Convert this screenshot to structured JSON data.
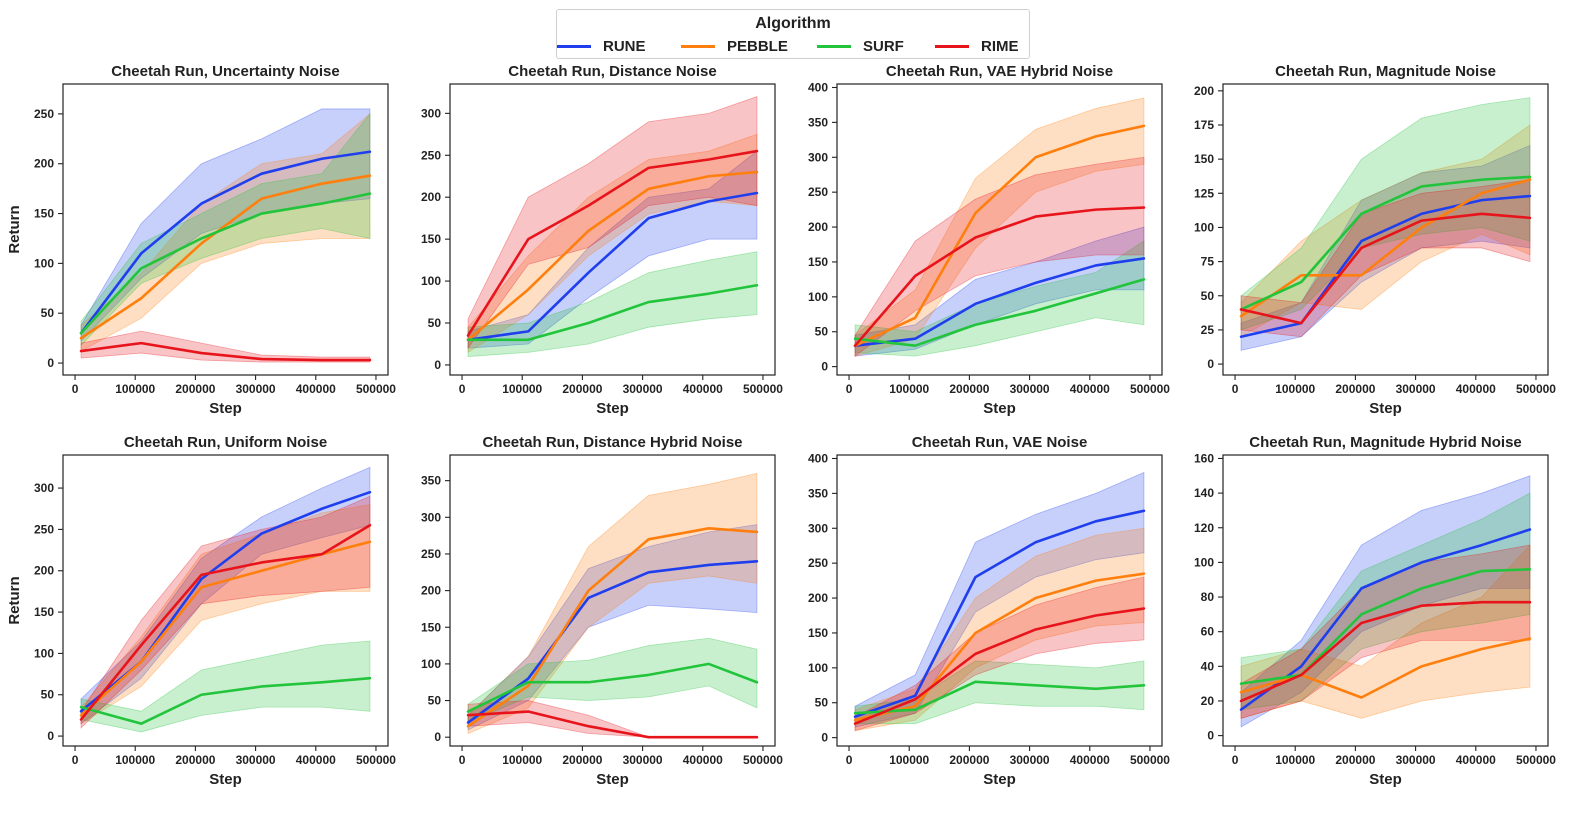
{
  "legend": {
    "title": "Algorithm",
    "items": [
      {
        "name": "RUNE",
        "color": "#1f3fee"
      },
      {
        "name": "PEBBLE",
        "color": "#ff7f0e"
      },
      {
        "name": "SURF",
        "color": "#22c43b"
      },
      {
        "name": "RIME",
        "color": "#e8141c"
      }
    ]
  },
  "chart_data": [
    {
      "type": "line",
      "title": "Cheetah Run, Uncertainty Noise",
      "xlabel": "Step",
      "ylabel": "Return",
      "xlim": [
        -20000,
        520000
      ],
      "ylim": [
        -12,
        280
      ],
      "xticks": [
        0,
        100000,
        200000,
        300000,
        400000,
        500000
      ],
      "yticks": [
        0,
        50,
        100,
        150,
        200,
        250
      ],
      "x": [
        10000,
        110000,
        210000,
        310000,
        410000,
        490000
      ],
      "series": [
        {
          "name": "RUNE",
          "values": [
            30,
            110,
            160,
            190,
            205,
            212
          ],
          "lower": [
            22,
            85,
            130,
            150,
            160,
            165
          ],
          "upper": [
            38,
            140,
            200,
            225,
            255,
            255
          ]
        },
        {
          "name": "PEBBLE",
          "values": [
            25,
            65,
            120,
            165,
            180,
            188
          ],
          "lower": [
            12,
            45,
            100,
            120,
            125,
            125
          ],
          "upper": [
            38,
            90,
            160,
            200,
            210,
            250
          ]
        },
        {
          "name": "SURF",
          "values": [
            30,
            95,
            125,
            150,
            160,
            170
          ],
          "lower": [
            18,
            80,
            105,
            125,
            135,
            125
          ],
          "upper": [
            42,
            120,
            150,
            180,
            190,
            250
          ]
        },
        {
          "name": "RIME",
          "values": [
            12,
            20,
            10,
            4,
            3,
            3
          ],
          "lower": [
            5,
            10,
            3,
            1,
            1,
            1
          ],
          "upper": [
            20,
            32,
            20,
            8,
            6,
            6
          ]
        }
      ]
    },
    {
      "type": "line",
      "title": "Cheetah Run, Distance Noise",
      "xlabel": "Step",
      "ylabel": "",
      "xlim": [
        -20000,
        520000
      ],
      "ylim": [
        -12,
        335
      ],
      "xticks": [
        0,
        100000,
        200000,
        300000,
        400000,
        500000
      ],
      "yticks": [
        0,
        50,
        100,
        150,
        200,
        250,
        300
      ],
      "x": [
        10000,
        110000,
        210000,
        310000,
        410000,
        490000
      ],
      "series": [
        {
          "name": "RUNE",
          "values": [
            30,
            40,
            110,
            175,
            195,
            205
          ],
          "lower": [
            20,
            25,
            80,
            130,
            150,
            150
          ],
          "upper": [
            40,
            60,
            140,
            200,
            210,
            255
          ]
        },
        {
          "name": "PEBBLE",
          "values": [
            30,
            90,
            160,
            210,
            225,
            230
          ],
          "lower": [
            15,
            60,
            130,
            180,
            195,
            190
          ],
          "upper": [
            45,
            130,
            200,
            245,
            255,
            275
          ]
        },
        {
          "name": "SURF",
          "values": [
            30,
            30,
            50,
            75,
            85,
            95
          ],
          "lower": [
            10,
            15,
            25,
            45,
            55,
            60
          ],
          "upper": [
            45,
            50,
            75,
            110,
            125,
            135
          ]
        },
        {
          "name": "RIME",
          "values": [
            35,
            150,
            190,
            235,
            245,
            255
          ],
          "lower": [
            20,
            120,
            140,
            190,
            200,
            190
          ],
          "upper": [
            55,
            200,
            240,
            290,
            300,
            320
          ]
        }
      ]
    },
    {
      "type": "line",
      "title": "Cheetah Run, VAE Hybrid Noise",
      "xlabel": "Step",
      "ylabel": "",
      "xlim": [
        -20000,
        520000
      ],
      "ylim": [
        -12,
        405
      ],
      "xticks": [
        0,
        100000,
        200000,
        300000,
        400000,
        500000
      ],
      "yticks": [
        0,
        50,
        100,
        150,
        200,
        250,
        300,
        350,
        400
      ],
      "x": [
        10000,
        110000,
        210000,
        310000,
        410000,
        490000
      ],
      "series": [
        {
          "name": "RUNE",
          "values": [
            30,
            40,
            90,
            120,
            145,
            155
          ],
          "lower": [
            15,
            25,
            60,
            90,
            110,
            110
          ],
          "upper": [
            45,
            60,
            125,
            150,
            180,
            200
          ]
        },
        {
          "name": "PEBBLE",
          "values": [
            30,
            70,
            220,
            300,
            330,
            345
          ],
          "lower": [
            15,
            40,
            170,
            250,
            280,
            290
          ],
          "upper": [
            45,
            110,
            270,
            340,
            370,
            385
          ]
        },
        {
          "name": "SURF",
          "values": [
            40,
            30,
            60,
            80,
            105,
            125
          ],
          "lower": [
            20,
            15,
            30,
            50,
            70,
            60
          ],
          "upper": [
            60,
            50,
            90,
            115,
            135,
            180
          ]
        },
        {
          "name": "RIME",
          "values": [
            30,
            130,
            185,
            215,
            225,
            228
          ],
          "lower": [
            15,
            80,
            130,
            150,
            160,
            160
          ],
          "upper": [
            45,
            180,
            240,
            275,
            290,
            300
          ]
        }
      ]
    },
    {
      "type": "line",
      "title": "Cheetah Run, Magnitude Noise",
      "xlabel": "Step",
      "ylabel": "",
      "xlim": [
        -20000,
        520000
      ],
      "ylim": [
        -8,
        205
      ],
      "xticks": [
        0,
        100000,
        200000,
        300000,
        400000,
        500000
      ],
      "yticks": [
        0,
        25,
        50,
        75,
        100,
        125,
        150,
        175,
        200
      ],
      "x": [
        10000,
        110000,
        210000,
        310000,
        410000,
        490000
      ],
      "series": [
        {
          "name": "RUNE",
          "values": [
            20,
            30,
            90,
            110,
            120,
            123
          ],
          "lower": [
            10,
            20,
            60,
            85,
            90,
            85
          ],
          "upper": [
            30,
            45,
            120,
            140,
            145,
            160
          ]
        },
        {
          "name": "PEBBLE",
          "values": [
            35,
            65,
            65,
            100,
            125,
            135
          ],
          "lower": [
            20,
            45,
            40,
            75,
            95,
            80
          ],
          "upper": [
            45,
            90,
            120,
            140,
            150,
            175
          ]
        },
        {
          "name": "SURF",
          "values": [
            40,
            60,
            110,
            130,
            135,
            137
          ],
          "lower": [
            25,
            40,
            85,
            95,
            100,
            90
          ],
          "upper": [
            50,
            85,
            150,
            180,
            190,
            195
          ]
        },
        {
          "name": "RIME",
          "values": [
            40,
            30,
            85,
            105,
            110,
            107
          ],
          "lower": [
            25,
            20,
            65,
            85,
            85,
            75
          ],
          "upper": [
            50,
            45,
            110,
            125,
            130,
            135
          ]
        }
      ]
    },
    {
      "type": "line",
      "title": "Cheetah Run, Uniform Noise",
      "xlabel": "Step",
      "ylabel": "Return",
      "xlim": [
        -20000,
        520000
      ],
      "ylim": [
        -12,
        340
      ],
      "xticks": [
        0,
        100000,
        200000,
        300000,
        400000,
        500000
      ],
      "yticks": [
        0,
        50,
        100,
        150,
        200,
        250,
        300
      ],
      "x": [
        10000,
        110000,
        210000,
        310000,
        410000,
        490000
      ],
      "series": [
        {
          "name": "RUNE",
          "values": [
            30,
            90,
            190,
            245,
            275,
            295
          ],
          "lower": [
            15,
            70,
            160,
            220,
            240,
            255
          ],
          "upper": [
            45,
            115,
            215,
            265,
            300,
            325
          ]
        },
        {
          "name": "PEBBLE",
          "values": [
            25,
            90,
            180,
            200,
            220,
            235
          ],
          "lower": [
            15,
            60,
            140,
            160,
            175,
            175
          ],
          "upper": [
            35,
            120,
            220,
            245,
            270,
            280
          ]
        },
        {
          "name": "SURF",
          "values": [
            35,
            15,
            50,
            60,
            65,
            70
          ],
          "lower": [
            20,
            5,
            25,
            35,
            35,
            30
          ],
          "upper": [
            45,
            30,
            80,
            95,
            110,
            115
          ]
        },
        {
          "name": "RIME",
          "values": [
            20,
            110,
            195,
            210,
            220,
            255
          ],
          "lower": [
            10,
            80,
            160,
            170,
            175,
            180
          ],
          "upper": [
            30,
            140,
            230,
            250,
            265,
            290
          ]
        }
      ]
    },
    {
      "type": "line",
      "title": "Cheetah Run, Distance Hybrid Noise",
      "xlabel": "Step",
      "ylabel": "",
      "xlim": [
        -20000,
        520000
      ],
      "ylim": [
        -12,
        385
      ],
      "xticks": [
        0,
        100000,
        200000,
        300000,
        400000,
        500000
      ],
      "yticks": [
        0,
        50,
        100,
        150,
        200,
        250,
        300,
        350
      ],
      "x": [
        10000,
        110000,
        210000,
        310000,
        410000,
        490000
      ],
      "series": [
        {
          "name": "RUNE",
          "values": [
            20,
            80,
            190,
            225,
            235,
            240
          ],
          "lower": [
            10,
            50,
            150,
            180,
            175,
            170
          ],
          "upper": [
            30,
            110,
            230,
            260,
            280,
            290
          ]
        },
        {
          "name": "PEBBLE",
          "values": [
            15,
            70,
            200,
            270,
            285,
            280
          ],
          "lower": [
            5,
            40,
            150,
            210,
            220,
            210
          ],
          "upper": [
            30,
            110,
            260,
            330,
            345,
            360
          ]
        },
        {
          "name": "SURF",
          "values": [
            35,
            75,
            75,
            85,
            100,
            75
          ],
          "lower": [
            20,
            55,
            50,
            55,
            70,
            40
          ],
          "upper": [
            45,
            100,
            105,
            125,
            135,
            120
          ]
        },
        {
          "name": "RIME",
          "values": [
            30,
            35,
            15,
            0,
            0,
            0
          ],
          "lower": [
            15,
            20,
            5,
            0,
            0,
            0
          ],
          "upper": [
            45,
            50,
            30,
            0,
            0,
            0
          ]
        }
      ]
    },
    {
      "type": "line",
      "title": "Cheetah Run, VAE Noise",
      "xlabel": "Step",
      "ylabel": "",
      "xlim": [
        -20000,
        520000
      ],
      "ylim": [
        -12,
        405
      ],
      "xticks": [
        0,
        100000,
        200000,
        300000,
        400000,
        500000
      ],
      "yticks": [
        0,
        50,
        100,
        150,
        200,
        250,
        300,
        350,
        400
      ],
      "x": [
        10000,
        110000,
        210000,
        310000,
        410000,
        490000
      ],
      "series": [
        {
          "name": "RUNE",
          "values": [
            30,
            60,
            230,
            280,
            310,
            325
          ],
          "lower": [
            15,
            35,
            180,
            230,
            255,
            265
          ],
          "upper": [
            45,
            90,
            280,
            320,
            350,
            380
          ]
        },
        {
          "name": "PEBBLE",
          "values": [
            25,
            45,
            150,
            200,
            225,
            235
          ],
          "lower": [
            10,
            25,
            100,
            140,
            160,
            165
          ],
          "upper": [
            40,
            70,
            200,
            260,
            290,
            300
          ]
        },
        {
          "name": "SURF",
          "values": [
            35,
            40,
            80,
            75,
            70,
            75
          ],
          "lower": [
            20,
            20,
            50,
            45,
            45,
            40
          ],
          "upper": [
            45,
            55,
            110,
            105,
            100,
            110
          ]
        },
        {
          "name": "RIME",
          "values": [
            20,
            55,
            120,
            155,
            175,
            185
          ],
          "lower": [
            10,
            35,
            90,
            120,
            135,
            140
          ],
          "upper": [
            30,
            75,
            150,
            190,
            215,
            230
          ]
        }
      ]
    },
    {
      "type": "line",
      "title": "Cheetah Run, Magnitude Hybrid Noise",
      "xlabel": "Step",
      "ylabel": "",
      "xlim": [
        -20000,
        520000
      ],
      "ylim": [
        -6,
        162
      ],
      "xticks": [
        0,
        100000,
        200000,
        300000,
        400000,
        500000
      ],
      "yticks": [
        0,
        20,
        40,
        60,
        80,
        100,
        120,
        140,
        160
      ],
      "x": [
        10000,
        110000,
        210000,
        310000,
        410000,
        490000
      ],
      "series": [
        {
          "name": "RUNE",
          "values": [
            15,
            40,
            85,
            100,
            110,
            119
          ],
          "lower": [
            5,
            25,
            60,
            75,
            85,
            85
          ],
          "upper": [
            25,
            55,
            110,
            130,
            140,
            150
          ]
        },
        {
          "name": "PEBBLE",
          "values": [
            25,
            35,
            22,
            40,
            50,
            56
          ],
          "lower": [
            10,
            20,
            10,
            20,
            25,
            28
          ],
          "upper": [
            40,
            50,
            40,
            65,
            80,
            110
          ]
        },
        {
          "name": "SURF",
          "values": [
            30,
            35,
            70,
            85,
            95,
            96
          ],
          "lower": [
            15,
            20,
            50,
            60,
            65,
            70
          ],
          "upper": [
            45,
            50,
            95,
            110,
            125,
            140
          ]
        },
        {
          "name": "RIME",
          "values": [
            20,
            35,
            65,
            75,
            77,
            77
          ],
          "lower": [
            10,
            20,
            45,
            55,
            55,
            55
          ],
          "upper": [
            30,
            50,
            85,
            100,
            105,
            110
          ]
        }
      ]
    }
  ]
}
